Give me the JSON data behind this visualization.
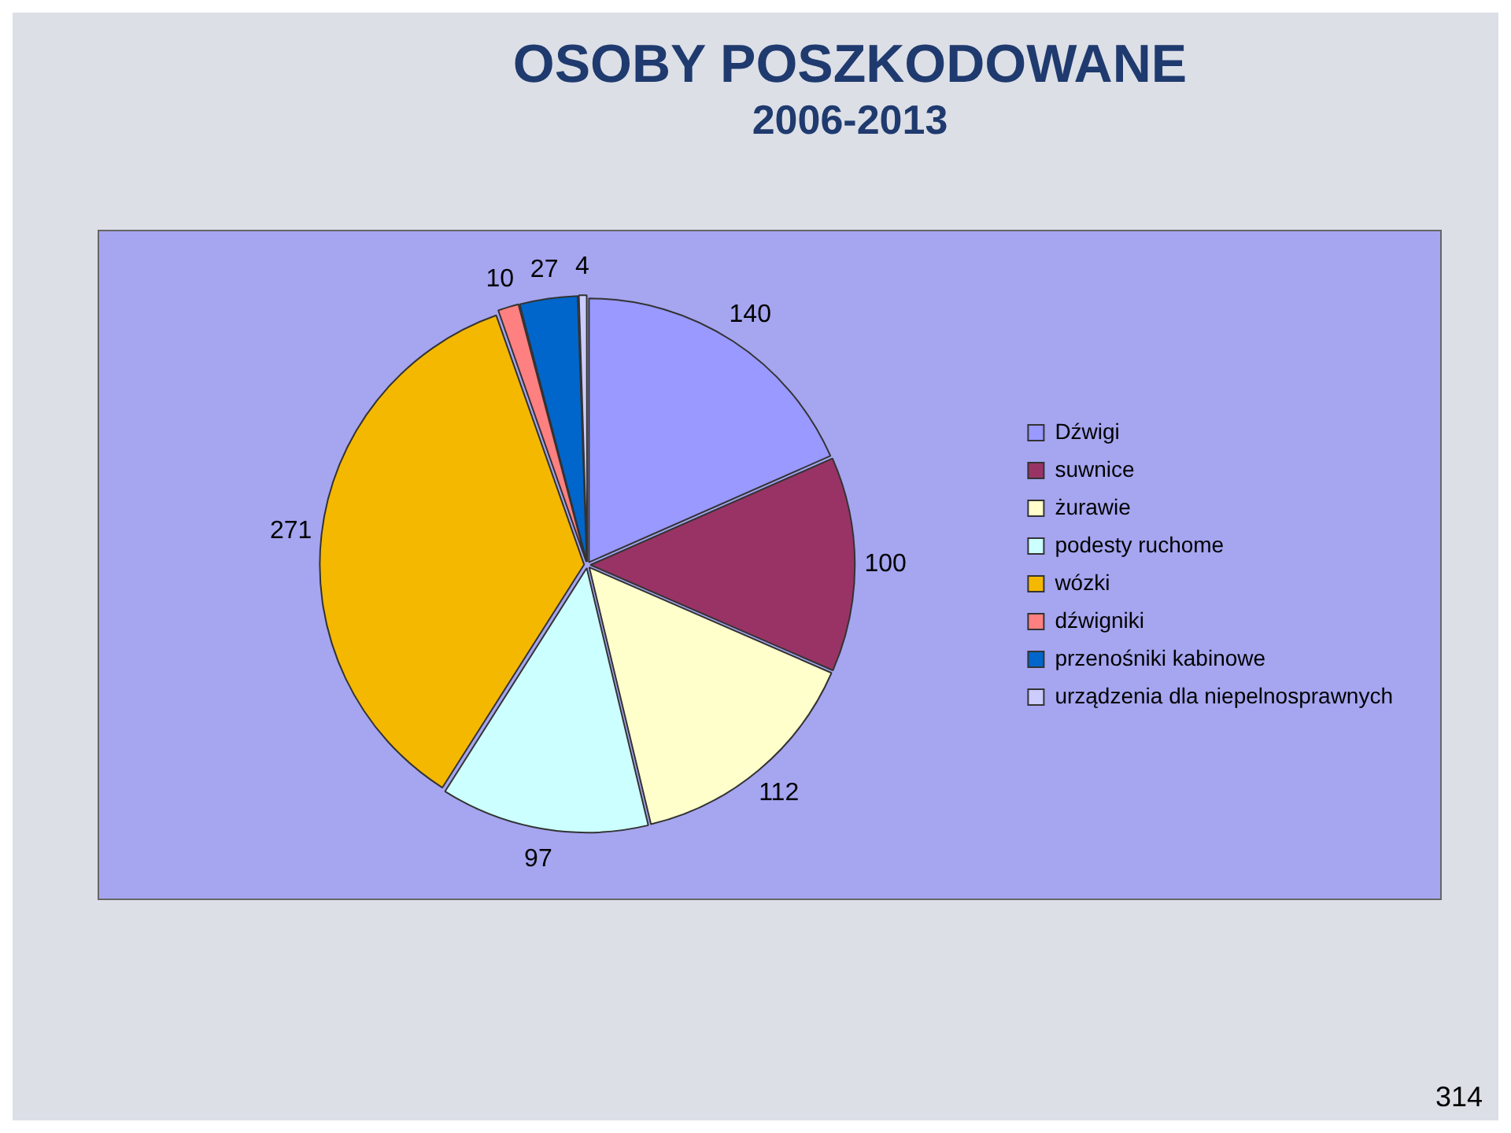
{
  "chart_data": {
    "type": "pie",
    "title": "OSOBY POSZKODOWANE",
    "subtitle": "2006-2013",
    "categories": [
      "Dźwigi",
      "suwnice",
      "żurawie",
      "podesty ruchome",
      "wózki",
      "dźwigniki",
      "przenośniki kabinowe",
      "urządzenia dla niepelnosprawnych"
    ],
    "values": [
      140,
      100,
      112,
      97,
      271,
      10,
      27,
      4
    ],
    "colors": [
      "#9999ff",
      "#993366",
      "#ffffcc",
      "#ccffff",
      "#f5b800",
      "#ff8080",
      "#0066cc",
      "#ccccff"
    ],
    "data_labels": true,
    "legend": "right",
    "annotations": [
      "314"
    ]
  }
}
